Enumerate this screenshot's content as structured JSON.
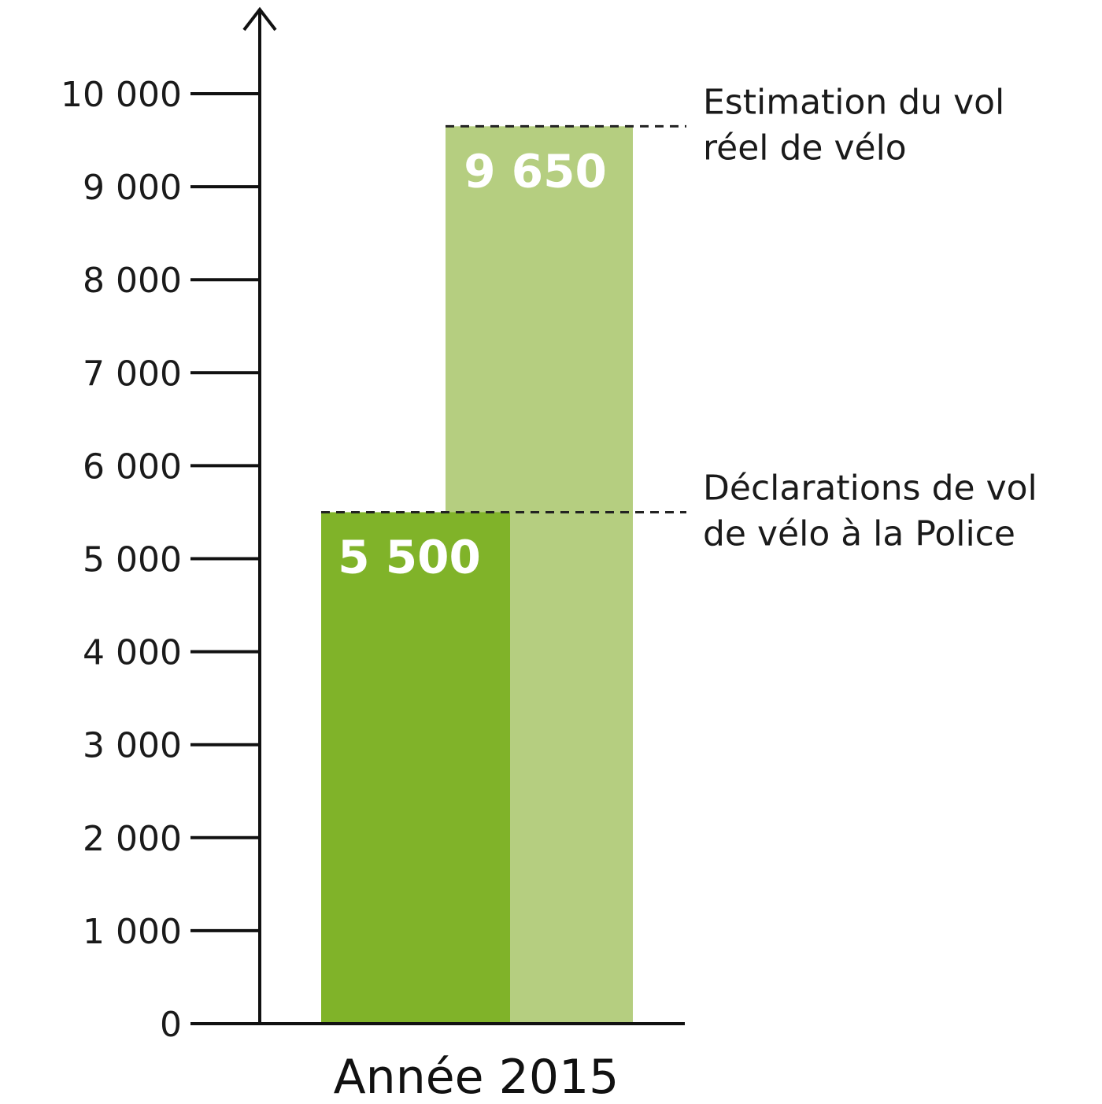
{
  "chart_data": {
    "type": "bar",
    "categories": [
      "Année 2015"
    ],
    "series": [
      {
        "values": [
          5500
        ],
        "color": "#80b329"
      },
      {
        "values": [
          9650
        ],
        "color": "#b5ce80"
      }
    ],
    "value_labels": [
      "5 500",
      "9 650"
    ],
    "annotations": [
      {
        "lines": [
          "Estimation du vol",
          "réel de vélo"
        ],
        "value": 9650
      },
      {
        "lines": [
          "Déclarations de vol",
          "de vélo à la Police"
        ],
        "value": 5500
      }
    ],
    "yticks": [
      0,
      1000,
      2000,
      3000,
      4000,
      5000,
      6000,
      7000,
      8000,
      9000,
      10000
    ],
    "ytick_labels": [
      "0",
      "1 000",
      "2 000",
      "3 000",
      "4 000",
      "5 000",
      "6 000",
      "7 000",
      "8 000",
      "9 000",
      "10 000"
    ],
    "ylim": [
      0,
      10000
    ],
    "title": "",
    "xlabel": "",
    "ylabel": "",
    "grid": false,
    "legend": false,
    "axis_color": "#111111"
  }
}
